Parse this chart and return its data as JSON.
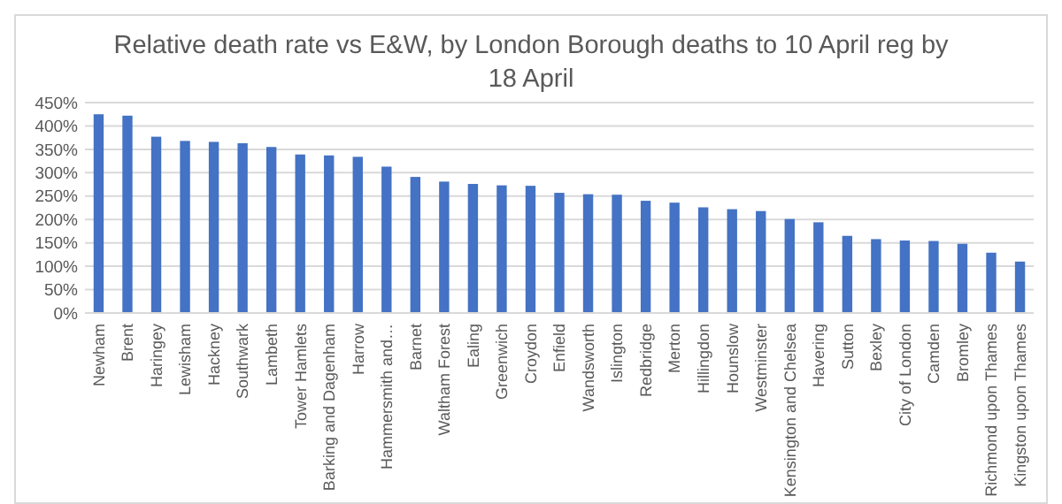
{
  "chart_data": {
    "type": "bar",
    "title": "Relative death rate vs E&W, by London Borough deaths to 10 April reg by 18 April",
    "categories": [
      "Newham",
      "Brent",
      "Haringey",
      "Lewisham",
      "Hackney",
      "Southwark",
      "Lambeth",
      "Tower Hamlets",
      "Barking and Dagenham",
      "Harrow",
      "Hammersmith and…",
      "Barnet",
      "Waltham Forest",
      "Ealing",
      "Greenwich",
      "Croydon",
      "Enfield",
      "Wandsworth",
      "Islington",
      "Redbridge",
      "Merton",
      "Hillingdon",
      "Hounslow",
      "Westminster",
      "Kensington and Chelsea",
      "Havering",
      "Sutton",
      "Bexley",
      "City of London",
      "Camden",
      "Bromley",
      "Richmond upon Thames",
      "Kingston upon Thames"
    ],
    "values": [
      425,
      422,
      377,
      368,
      366,
      363,
      355,
      339,
      337,
      334,
      313,
      291,
      281,
      276,
      273,
      272,
      257,
      254,
      253,
      240,
      236,
      226,
      222,
      218,
      201,
      194,
      165,
      158,
      155,
      154,
      148,
      129,
      110
    ],
    "color": "#4472c4",
    "ylim": [
      0,
      450
    ],
    "yticks": [
      {
        "value": 0,
        "label": "0%"
      },
      {
        "value": 50,
        "label": "50%"
      },
      {
        "value": 100,
        "label": "100%"
      },
      {
        "value": 150,
        "label": "150%"
      },
      {
        "value": 200,
        "label": "200%"
      },
      {
        "value": 250,
        "label": "250%"
      },
      {
        "value": 300,
        "label": "300%"
      },
      {
        "value": 350,
        "label": "350%"
      },
      {
        "value": 400,
        "label": "400%"
      },
      {
        "value": 450,
        "label": "450%"
      }
    ],
    "grid": "y"
  }
}
